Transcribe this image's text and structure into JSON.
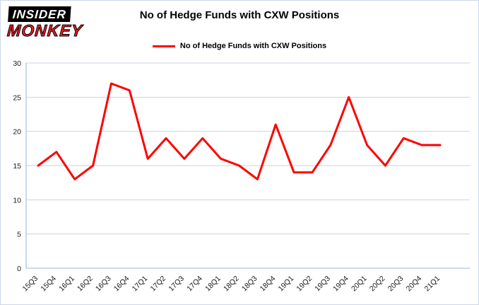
{
  "logo": {
    "line1": "INSIDER",
    "line2": "MONKEY"
  },
  "header": {
    "title": "No of Hedge Funds with CXW Positions"
  },
  "legend": {
    "label": "No of Hedge Funds with CXW Positions"
  },
  "colors": {
    "line": "#ff0000",
    "grid": "#c9d2e0",
    "axis": "#95b3d7",
    "logo_red": "#ed1c24"
  },
  "chart_data": {
    "type": "line",
    "title": "No of Hedge Funds with CXW Positions",
    "xlabel": "",
    "ylabel": "",
    "ylim": [
      0,
      30
    ],
    "yticks": [
      0,
      5,
      10,
      15,
      20,
      25,
      30
    ],
    "grid": true,
    "legend_position": "top",
    "categories": [
      "15Q3",
      "15Q4",
      "16Q1",
      "16Q2",
      "16Q3",
      "16Q4",
      "17Q1",
      "17Q2",
      "17Q3",
      "17Q4",
      "18Q1",
      "18Q2",
      "18Q3",
      "18Q4",
      "19Q1",
      "19Q2",
      "19Q3",
      "19Q4",
      "20Q1",
      "20Q2",
      "20Q3",
      "20Q4",
      "21Q1"
    ],
    "series": [
      {
        "name": "No of Hedge Funds with CXW Positions",
        "color": "#ff0000",
        "values": [
          15,
          17,
          13,
          15,
          27,
          26,
          16,
          19,
          16,
          19,
          16,
          15,
          13,
          21,
          14,
          14,
          18,
          25,
          18,
          15,
          19,
          18,
          18
        ]
      }
    ]
  }
}
